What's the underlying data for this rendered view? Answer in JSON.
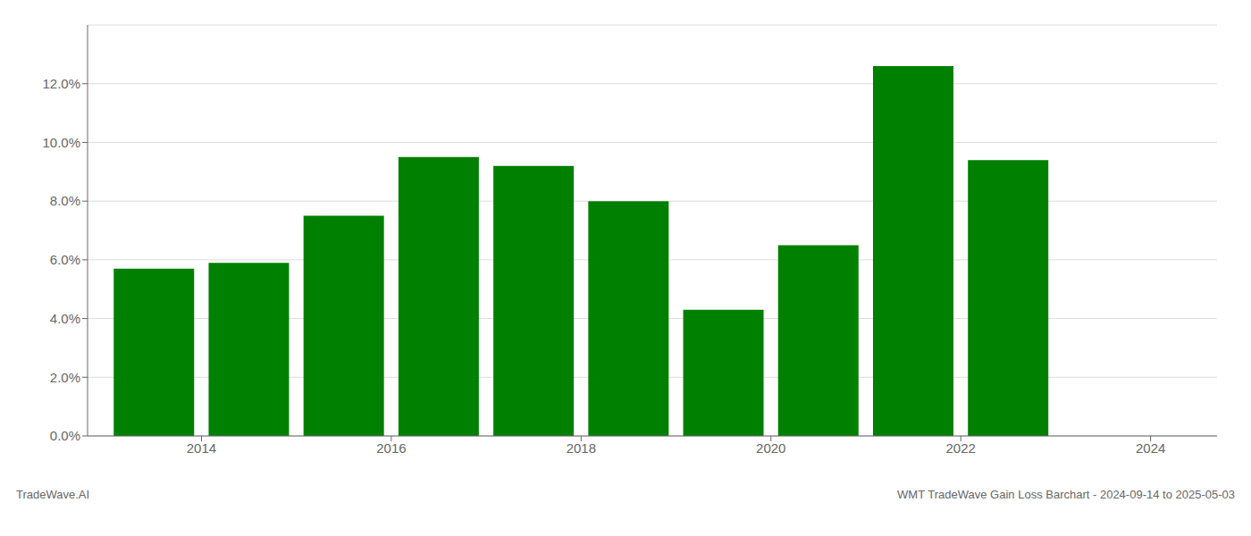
{
  "chart_data": {
    "type": "bar",
    "x": [
      2014,
      2015,
      2016,
      2017,
      2018,
      2019,
      2020,
      2021,
      2022,
      2023
    ],
    "values": [
      0.057,
      0.059,
      0.075,
      0.095,
      0.092,
      0.08,
      0.043,
      0.065,
      0.126,
      0.094
    ],
    "color": "#008000",
    "xlim": [
      2013.3,
      2025.2
    ],
    "xticks": [
      {
        "value": 2014.5,
        "label": "2014"
      },
      {
        "value": 2016.5,
        "label": "2016"
      },
      {
        "value": 2018.5,
        "label": "2018"
      },
      {
        "value": 2020.5,
        "label": "2020"
      },
      {
        "value": 2022.5,
        "label": "2022"
      },
      {
        "value": 2024.5,
        "label": "2024"
      }
    ],
    "ylim": [
      0,
      0.14
    ],
    "yticks": [
      {
        "value": 0.0,
        "label": "0.0%"
      },
      {
        "value": 0.02,
        "label": "2.0%"
      },
      {
        "value": 0.04,
        "label": "4.0%"
      },
      {
        "value": 0.06,
        "label": "6.0%"
      },
      {
        "value": 0.08,
        "label": "8.0%"
      },
      {
        "value": 0.1,
        "label": "10.0%"
      },
      {
        "value": 0.12,
        "label": "12.0%"
      }
    ],
    "grid": true,
    "annotations": [
      "TradeWave.AI",
      "WMT TradeWave Gain Loss Barchart - 2024-09-14 to 2025-05-03"
    ]
  }
}
